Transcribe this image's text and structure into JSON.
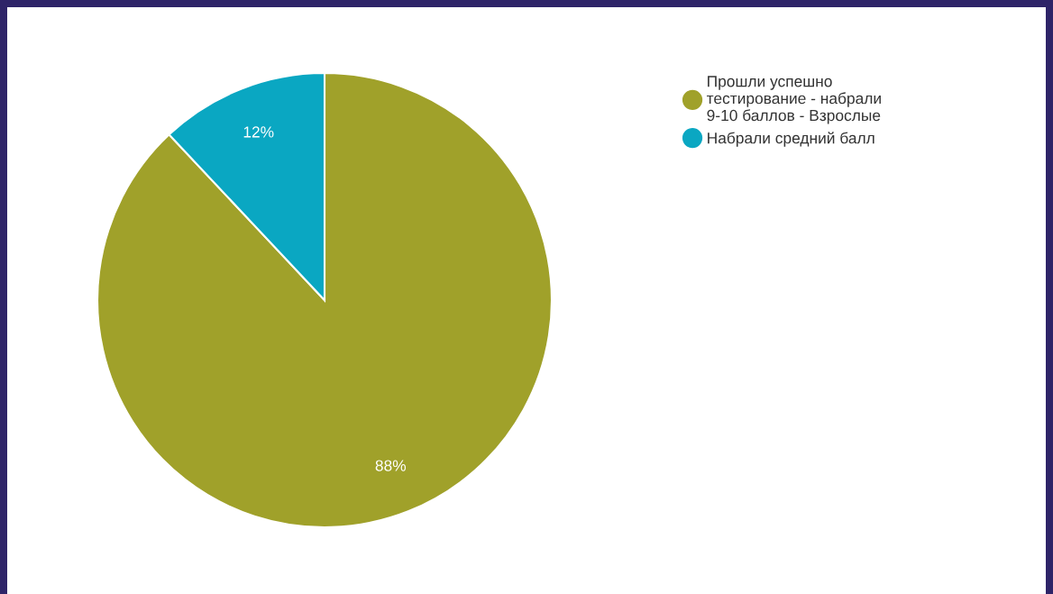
{
  "chart_data": {
    "type": "pie",
    "categories": [
      "Прошли успешно тестирование - набрали 9-10 баллов - Взрослые",
      "Набрали средний балл"
    ],
    "values": [
      88,
      12
    ],
    "colors": [
      "#a0a12a",
      "#0aa7c2"
    ],
    "value_labels": [
      "88%",
      "12%"
    ],
    "legend": "top right"
  }
}
